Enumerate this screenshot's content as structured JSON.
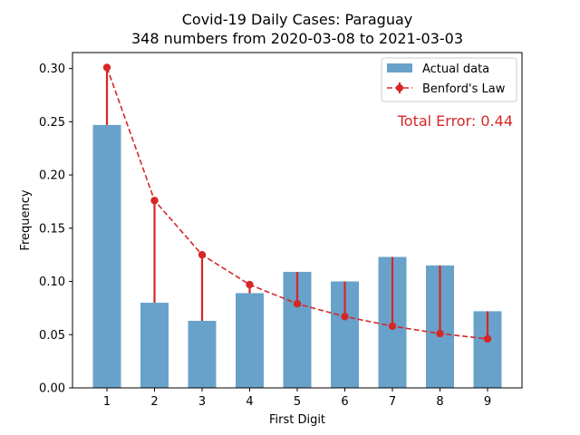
{
  "chart_data": {
    "type": "bar",
    "title": "Covid-19 Daily Cases: Paraguay",
    "subtitle": "348 numbers from 2020-03-08 to 2021-03-03",
    "xlabel": "First Digit",
    "ylabel": "Frequency",
    "categories": [
      "1",
      "2",
      "3",
      "4",
      "5",
      "6",
      "7",
      "8",
      "9"
    ],
    "ylim": [
      0,
      0.315
    ],
    "yticks": [
      "0.00",
      "0.05",
      "0.10",
      "0.15",
      "0.20",
      "0.25",
      "0.30"
    ],
    "series": [
      {
        "name": "Actual data",
        "kind": "bar",
        "color": "#5b9ac6",
        "values": [
          0.247,
          0.08,
          0.063,
          0.089,
          0.109,
          0.1,
          0.123,
          0.115,
          0.072
        ]
      },
      {
        "name": "Benford's Law",
        "kind": "line-errorbar",
        "color": "#d62728",
        "values": [
          0.301,
          0.176,
          0.125,
          0.097,
          0.079,
          0.067,
          0.058,
          0.051,
          0.046
        ]
      }
    ],
    "legend": {
      "position": "top-right",
      "items": [
        "Actual data",
        "Benford's Law"
      ]
    },
    "annotation": {
      "text": "Total Error: 0.44",
      "color": "#d62728"
    }
  }
}
